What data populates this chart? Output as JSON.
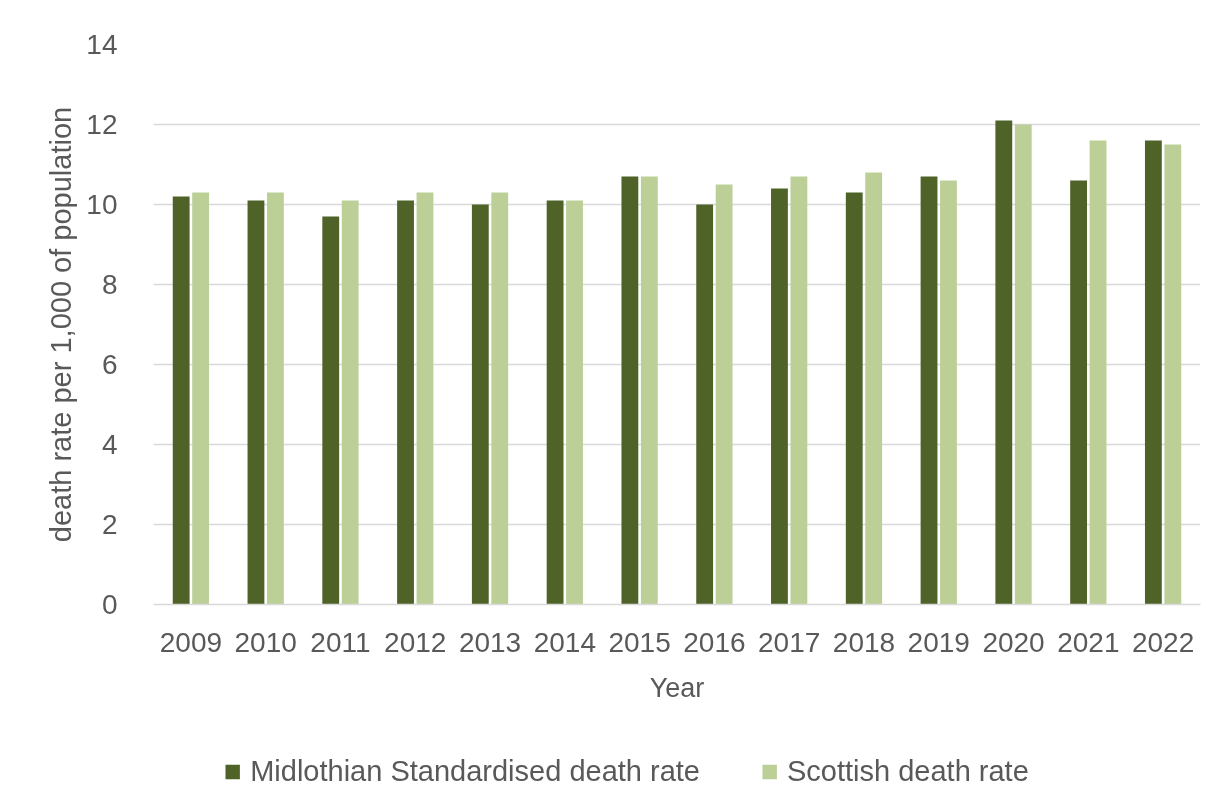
{
  "chart_data": {
    "type": "bar",
    "xlabel": "Year",
    "ylabel": "death rate per 1,000 of population",
    "categories": [
      "2009",
      "2010",
      "2011",
      "2012",
      "2013",
      "2014",
      "2015",
      "2016",
      "2017",
      "2018",
      "2019",
      "2020",
      "2021",
      "2022"
    ],
    "series": [
      {
        "name": "Midlothian Standardised death rate",
        "color": "#4f6228",
        "values": [
          10.2,
          10.1,
          9.7,
          10.1,
          10.0,
          10.1,
          10.7,
          10.0,
          10.4,
          10.3,
          10.7,
          12.1,
          10.6,
          11.6
        ]
      },
      {
        "name": "Scottish death rate",
        "color": "#bbcf97",
        "values": [
          10.3,
          10.3,
          10.1,
          10.3,
          10.3,
          10.1,
          10.7,
          10.5,
          10.7,
          10.8,
          10.6,
          12.0,
          11.6,
          11.5
        ]
      }
    ],
    "ylim": [
      0,
      14
    ],
    "yticks": [
      0,
      2,
      4,
      6,
      8,
      10,
      12,
      14
    ],
    "grid": "y",
    "legend": "bottom"
  }
}
